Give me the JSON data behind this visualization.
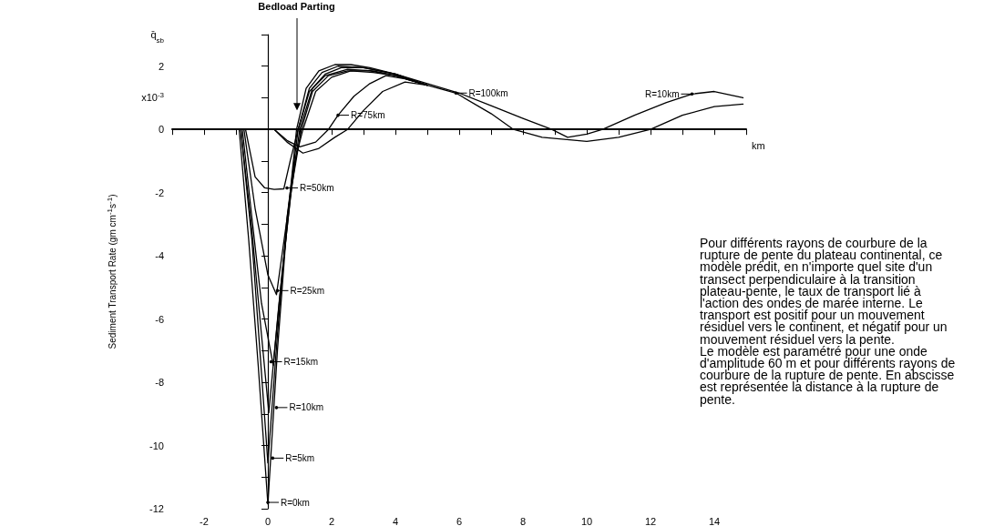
{
  "chart_data": {
    "type": "line",
    "ylabel": "Sediment Transport Rate (gm cm$^{-1}$s$^{-1}$)",
    "xlabel": "km",
    "xlim": [
      -3,
      15
    ],
    "xticks": [
      {
        "value": -3,
        "label": null
      },
      -2,
      {
        "value": -1,
        "label": null
      },
      0,
      {
        "value": 1,
        "label": null
      },
      2,
      {
        "value": 3,
        "label": null
      },
      4,
      {
        "value": 5,
        "label": null
      },
      6,
      {
        "value": 7,
        "label": null
      },
      8,
      {
        "value": 9,
        "label": null
      },
      10,
      {
        "value": 11,
        "label": null
      },
      12,
      {
        "value": 13,
        "label": null
      },
      14,
      {
        "value": 15,
        "label": null
      }
    ],
    "ylim": [
      -12,
      3
    ],
    "yticks": [
      -12,
      {
        "value": -11,
        "label": null
      },
      -10,
      {
        "value": -9,
        "label": null
      },
      -8,
      {
        "value": -7,
        "label": null
      },
      -6,
      {
        "value": -5,
        "label": null
      },
      -4,
      {
        "value": -3,
        "label": null
      },
      -2,
      {
        "value": -1,
        "label": null
      },
      0,
      {
        "value": 1,
        "label": "x10$^{-3}$"
      },
      2,
      {
        "value": 3,
        "label": "q̄$_{sb}$"
      }
    ],
    "grid": false,
    "legend": false,
    "marker": "none",
    "line_style": "solid",
    "series": [
      {
        "color": "#000000",
        "x": [
          -0.9,
          -0.6,
          -0.3,
          0,
          0.3,
          0.6,
          0.9,
          1.2,
          1.6,
          2.1,
          2.6,
          3.2,
          4,
          5
        ],
        "values": [
          0,
          -3.5,
          -7.5,
          -11.85,
          -7,
          -3,
          0,
          1.3,
          1.85,
          2.05,
          2.05,
          1.95,
          1.75,
          1.4
        ]
      },
      {
        "color": "#000000",
        "x": [
          -0.85,
          -0.5,
          -0.25,
          0,
          0.3,
          0.6,
          0.95,
          1.3,
          1.7,
          2.2,
          3,
          4,
          5
        ],
        "values": [
          0,
          -3.5,
          -7,
          -10.55,
          -6.5,
          -2.8,
          0,
          1.3,
          1.8,
          2.0,
          1.95,
          1.75,
          1.4
        ]
      },
      {
        "color": "#000000",
        "x": [
          -0.85,
          -0.5,
          -0.2,
          0.03,
          0.35,
          0.7,
          1.0,
          1.4,
          1.8,
          2.3,
          3,
          4,
          5,
          6,
          7,
          8,
          8.9,
          9.4,
          10,
          10.5,
          11.5,
          12.5,
          13.3,
          14,
          14.9
        ],
        "values": [
          0,
          -3.2,
          -6.5,
          -8.96,
          -5.5,
          -2.2,
          0,
          1.3,
          1.75,
          1.95,
          1.95,
          1.75,
          1.45,
          1.15,
          0.75,
          0.35,
          0,
          -0.25,
          -0.15,
          0,
          0.45,
          0.85,
          1.12,
          1.2,
          1.0
        ]
      },
      {
        "color": "#000000",
        "x": [
          -0.8,
          -0.5,
          -0.2,
          0.17,
          0.45,
          0.75,
          1.05,
          1.4,
          1.9,
          2.5,
          3.2,
          4,
          5
        ],
        "values": [
          0,
          -2.8,
          -5.5,
          -7.47,
          -4.5,
          -1.8,
          0,
          1.2,
          1.7,
          1.85,
          1.85,
          1.7,
          1.4
        ]
      },
      {
        "color": "#000000",
        "x": [
          -0.75,
          -0.4,
          0,
          0.27,
          0.55,
          0.85,
          1.1,
          1.5,
          2,
          2.6,
          3.3,
          4,
          5
        ],
        "values": [
          0,
          -2.5,
          -4.6,
          -5.23,
          -3.2,
          -1,
          0,
          1.2,
          1.65,
          1.85,
          1.8,
          1.7,
          1.4
        ]
      },
      {
        "color": "#000000",
        "x": [
          -0.7,
          -0.4,
          -0.1,
          0.2,
          0.5,
          0.7,
          0.95,
          1.3,
          1.8,
          2.5,
          3.3,
          4,
          5
        ],
        "values": [
          0,
          -1.5,
          -1.85,
          -1.9,
          -1.88,
          -1.0,
          0,
          1.2,
          1.7,
          1.9,
          1.85,
          1.7,
          1.4
        ]
      },
      {
        "color": "#000000",
        "x": [
          0.2,
          0.6,
          1.0,
          1.5,
          1.9,
          2.2,
          2.7,
          3.2,
          3.7,
          4.3,
          5
        ],
        "values": [
          0,
          -0.35,
          -0.55,
          -0.4,
          0,
          0.45,
          1.05,
          1.45,
          1.7,
          1.6,
          1.4
        ]
      },
      {
        "color": "#000000",
        "x": [
          0.2,
          0.6,
          1.1,
          1.6,
          2.1,
          2.5,
          3,
          3.6,
          4.3,
          5,
          5.9,
          7,
          7.7,
          8.6,
          10,
          11,
          12,
          13,
          14,
          14.9
        ],
        "values": [
          0,
          -0.4,
          -0.75,
          -0.6,
          -0.25,
          0,
          0.6,
          1.2,
          1.5,
          1.4,
          1.15,
          0.5,
          0,
          -0.25,
          -0.38,
          -0.25,
          0,
          0.45,
          0.72,
          0.8
        ]
      }
    ],
    "annotations": [
      {
        "text": "Bedload Parting",
        "x": 0.9,
        "y": 0.6
      },
      {
        "text": "R=0km",
        "x": 0.0,
        "y": -11.8
      },
      {
        "text": "R=5km",
        "x": 0.15,
        "y": -10.4
      },
      {
        "text": "R=10km",
        "x": 0.27,
        "y": -8.8
      },
      {
        "text": "R=15km",
        "x": 0.1,
        "y": -7.35
      },
      {
        "text": "R=25km",
        "x": 0.3,
        "y": -5.1
      },
      {
        "text": "R=50km",
        "x": 0.6,
        "y": -1.85
      },
      {
        "text": "R=75km",
        "x": 2.2,
        "y": 0.45
      },
      {
        "text": "R=100km",
        "x": 5.9,
        "y": 1.15
      },
      {
        "text": "R=10km",
        "x": 13.3,
        "y": 1.12
      },
      "Pour différents rayons de courbure de la rupture de pente du plateau continental, ce modèle prédit, en n'importe quel site d'un transect perpendiculaire à la transition plateau-pente, le taux de transport lié à l'action des ondes de marée interne. Le transport est positif pour un mouvement résiduel vers le continent, et négatif pour un mouvement résiduel vers la pente.\nLe modèle est paramétré pour une onde d'amplitude 60 m et pour différents rayons de courbure de la rupture de pente. En abscisse est représentée la distance à la rupture de pente."
    ]
  }
}
